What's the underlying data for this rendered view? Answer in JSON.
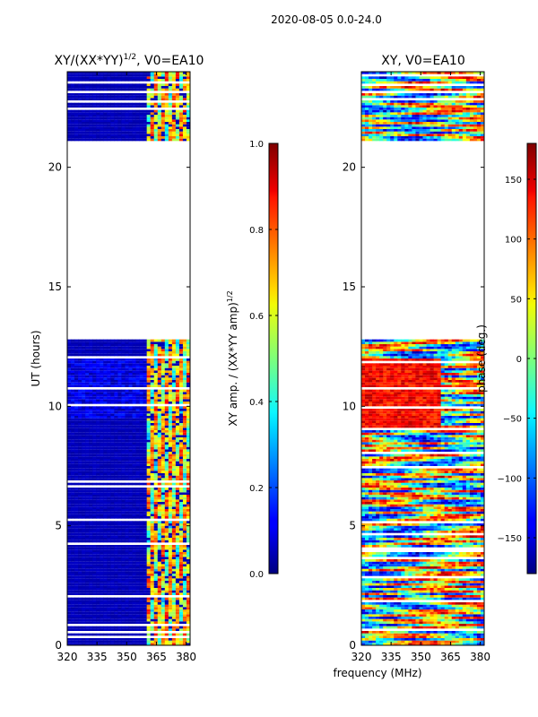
{
  "figure": {
    "suptitle": "2020-08-05 0.0-24.0",
    "xlabel": "frequency (MHz)"
  },
  "chart_data": [
    {
      "type": "heatmap",
      "title": "XY/(XX*YY)",
      "title_exponent": "1/2",
      "title_suffix": ", V0=EA10",
      "xlabel": "",
      "ylabel": "UT (hours)",
      "xlim": [
        320,
        382
      ],
      "ylim": [
        0,
        24
      ],
      "xticks": [
        320,
        335,
        350,
        365,
        380
      ],
      "yticks": [
        0,
        5,
        10,
        15,
        20
      ],
      "data_gap_hours": [
        [
          12.8,
          21.1
        ]
      ],
      "band_mhz": [
        360,
        382
      ],
      "colorbar": {
        "label": "XY amp. / (XX*YY amp)",
        "label_exponent": "1/2",
        "range": [
          0.0,
          1.0
        ],
        "ticks": [
          0.0,
          0.2,
          0.4,
          0.6,
          0.8,
          1.0
        ],
        "tick_labels": [
          "0.0",
          "0.2",
          "0.4",
          "0.6",
          "0.8",
          "1.0"
        ]
      }
    },
    {
      "type": "heatmap",
      "title": "XY, V0=EA10",
      "xlabel": "",
      "ylabel": "",
      "xlim": [
        320,
        382
      ],
      "ylim": [
        0,
        24
      ],
      "xticks": [
        320,
        335,
        350,
        365,
        380
      ],
      "yticks": [
        0,
        5,
        10,
        15,
        20
      ],
      "data_gap_hours": [
        [
          12.8,
          21.1
        ]
      ],
      "colorbar": {
        "label": "phase (deg.)",
        "range": [
          -180,
          180
        ],
        "ticks": [
          -150,
          -100,
          -50,
          0,
          50,
          100,
          150
        ],
        "tick_labels": [
          "−150",
          "−100",
          "−50",
          "0",
          "50",
          "100",
          "150"
        ]
      }
    }
  ]
}
